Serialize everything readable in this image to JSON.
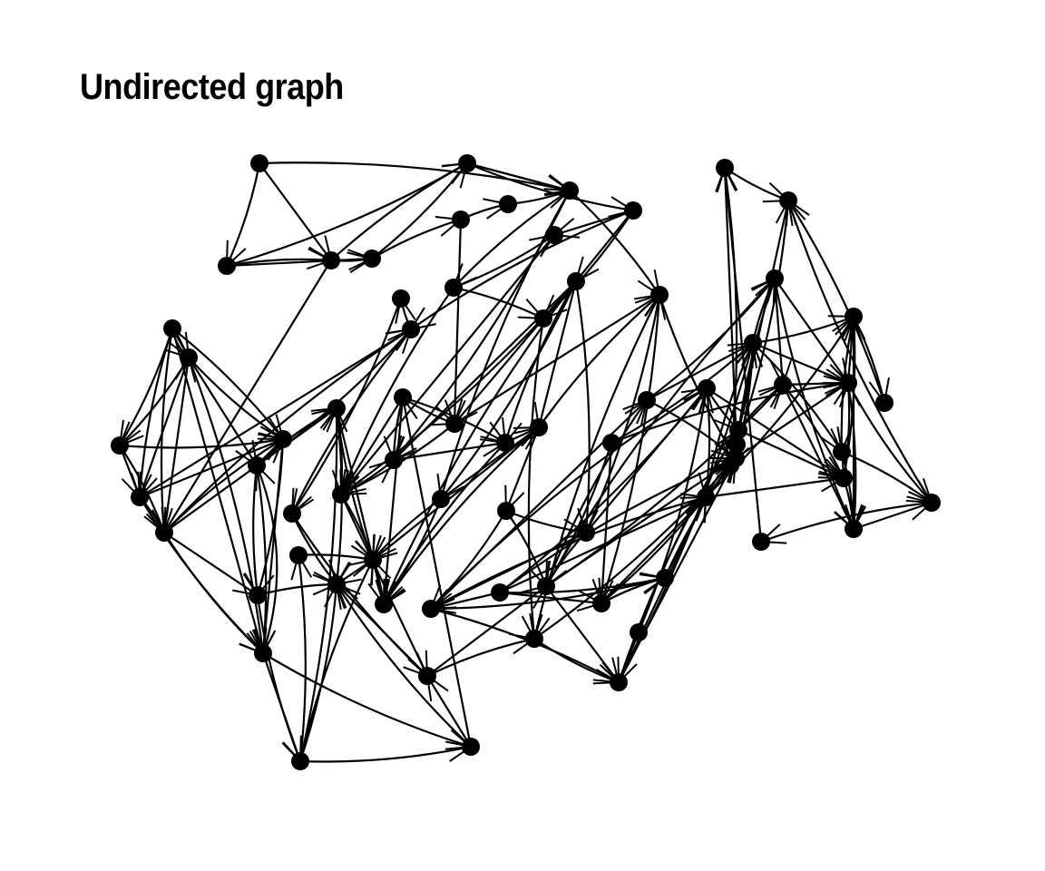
{
  "title": "Undirected graph",
  "colors": {
    "ink": "#000000",
    "background": "#ffffff"
  },
  "graph": {
    "nodes": [
      {
        "id": "n1"
      },
      {
        "id": "n2"
      },
      {
        "id": "n3"
      },
      {
        "id": "n4"
      },
      {
        "id": "n5"
      },
      {
        "id": "n6"
      },
      {
        "id": "n7"
      },
      {
        "id": "n8"
      },
      {
        "id": "n9"
      },
      {
        "id": "n10"
      },
      {
        "id": "n11"
      },
      {
        "id": "n12"
      },
      {
        "id": "n13"
      },
      {
        "id": "n14"
      },
      {
        "id": "n15"
      },
      {
        "id": "n16"
      },
      {
        "id": "n17"
      },
      {
        "id": "n18"
      },
      {
        "id": "n19"
      },
      {
        "id": "n20"
      },
      {
        "id": "n21"
      },
      {
        "id": "n22"
      },
      {
        "id": "n23"
      },
      {
        "id": "n24"
      },
      {
        "id": "n25"
      },
      {
        "id": "n26"
      },
      {
        "id": "n27"
      },
      {
        "id": "n28"
      },
      {
        "id": "n29"
      },
      {
        "id": "n30"
      },
      {
        "id": "n31"
      },
      {
        "id": "n32"
      },
      {
        "id": "n33"
      },
      {
        "id": "n34"
      },
      {
        "id": "n35"
      },
      {
        "id": "n36"
      },
      {
        "id": "n37"
      },
      {
        "id": "n38"
      },
      {
        "id": "n39"
      },
      {
        "id": "n40"
      },
      {
        "id": "n41"
      },
      {
        "id": "n42"
      },
      {
        "id": "n43"
      },
      {
        "id": "n44"
      },
      {
        "id": "n45"
      },
      {
        "id": "n46"
      },
      {
        "id": "n47"
      },
      {
        "id": "n48"
      },
      {
        "id": "n49"
      },
      {
        "id": "n50"
      },
      {
        "id": "n51"
      },
      {
        "id": "n52"
      },
      {
        "id": "n53"
      },
      {
        "id": "n54"
      },
      {
        "id": "n55"
      },
      {
        "id": "n56"
      },
      {
        "id": "n57"
      },
      {
        "id": "n58"
      },
      {
        "id": "n59"
      },
      {
        "id": "n60"
      },
      {
        "id": "n61"
      },
      {
        "id": "n62"
      },
      {
        "id": "n63"
      },
      {
        "id": "n64"
      },
      {
        "id": "n65"
      },
      {
        "id": "n66"
      },
      {
        "id": "n67"
      },
      {
        "id": "n68"
      },
      {
        "id": "n69"
      },
      {
        "id": "n70"
      },
      {
        "id": "n71"
      },
      {
        "id": "n72"
      }
    ],
    "edges": [
      [
        "n1",
        "n2"
      ],
      [
        "n1",
        "n3"
      ],
      [
        "n2",
        "n7"
      ],
      [
        "n2",
        "n3"
      ],
      [
        "n2",
        "n6"
      ],
      [
        "n3",
        "n6"
      ],
      [
        "n3",
        "n7"
      ],
      [
        "n3",
        "n10"
      ],
      [
        "n6",
        "n7"
      ],
      [
        "n6",
        "n11"
      ],
      [
        "n7",
        "n13"
      ],
      [
        "n7",
        "n14"
      ],
      [
        "n11",
        "n12"
      ],
      [
        "n11",
        "n29"
      ],
      [
        "n12",
        "n13"
      ],
      [
        "n13",
        "n31"
      ],
      [
        "n14",
        "n21"
      ],
      [
        "n13",
        "n25"
      ],
      [
        "n4",
        "n8"
      ],
      [
        "n4",
        "n5"
      ],
      [
        "n4",
        "n9"
      ],
      [
        "n4",
        "n16"
      ],
      [
        "n4",
        "n17"
      ],
      [
        "n4",
        "n10"
      ],
      [
        "n5",
        "n8"
      ],
      [
        "n5",
        "n9"
      ],
      [
        "n5",
        "n16"
      ],
      [
        "n5",
        "n17"
      ],
      [
        "n8",
        "n9"
      ],
      [
        "n8",
        "n16"
      ],
      [
        "n8",
        "n10"
      ],
      [
        "n9",
        "n16"
      ],
      [
        "n9",
        "n17"
      ],
      [
        "n9",
        "n10"
      ],
      [
        "n15",
        "n16"
      ],
      [
        "n15",
        "n18"
      ],
      [
        "n16",
        "n18"
      ],
      [
        "n16",
        "n17"
      ],
      [
        "n17",
        "n20"
      ],
      [
        "n10",
        "n16"
      ],
      [
        "n10",
        "n18"
      ],
      [
        "n10",
        "n17"
      ],
      [
        "n15",
        "n24"
      ],
      [
        "n10",
        "n24"
      ],
      [
        "n18",
        "n19"
      ],
      [
        "n18",
        "n36"
      ],
      [
        "n17",
        "n19"
      ],
      [
        "n19",
        "n20"
      ],
      [
        "n20",
        "n36"
      ],
      [
        "n20",
        "n34"
      ],
      [
        "n19",
        "n36"
      ],
      [
        "n15",
        "n17"
      ],
      [
        "n5",
        "n15"
      ],
      [
        "n22",
        "n35"
      ],
      [
        "n22",
        "n23"
      ],
      [
        "n20",
        "n27"
      ],
      [
        "n19",
        "n24"
      ],
      [
        "n17",
        "n15"
      ],
      [
        "n10",
        "n5"
      ],
      [
        "n4",
        "n5"
      ],
      [
        "n19",
        "n37"
      ],
      [
        "n26",
        "n31"
      ],
      [
        "n26",
        "n32"
      ],
      [
        "n26",
        "n33"
      ],
      [
        "n26",
        "n40"
      ],
      [
        "n26",
        "n38"
      ],
      [
        "n26",
        "n42"
      ],
      [
        "n27",
        "n30"
      ],
      [
        "n27",
        "n31"
      ],
      [
        "n27",
        "n32"
      ],
      [
        "n27",
        "n38"
      ],
      [
        "n24",
        "n37"
      ],
      [
        "n24",
        "n30"
      ],
      [
        "n24",
        "n38"
      ],
      [
        "n25",
        "n21"
      ],
      [
        "n25",
        "n28"
      ],
      [
        "n28",
        "n29"
      ],
      [
        "n28",
        "n48"
      ],
      [
        "n29",
        "n30"
      ],
      [
        "n29",
        "n44"
      ],
      [
        "n30",
        "n31"
      ],
      [
        "n30",
        "n37"
      ],
      [
        "n31",
        "n32"
      ],
      [
        "n32",
        "n38"
      ],
      [
        "n33",
        "n38"
      ],
      [
        "n33",
        "n40"
      ],
      [
        "n40",
        "n38"
      ],
      [
        "n40",
        "n44"
      ],
      [
        "n40",
        "n37"
      ],
      [
        "n41",
        "n42"
      ],
      [
        "n41",
        "n47"
      ],
      [
        "n42",
        "n46"
      ],
      [
        "n42",
        "n47"
      ],
      [
        "n43",
        "n47"
      ],
      [
        "n43",
        "n49"
      ],
      [
        "n44",
        "n48"
      ],
      [
        "n44",
        "n49"
      ],
      [
        "n45",
        "n46"
      ],
      [
        "n45",
        "n50"
      ],
      [
        "n46",
        "n52"
      ],
      [
        "n46",
        "n53"
      ],
      [
        "n46",
        "n50"
      ],
      [
        "n47",
        "n53"
      ],
      [
        "n47",
        "n52"
      ],
      [
        "n48",
        "n52"
      ],
      [
        "n49",
        "n50"
      ],
      [
        "n37",
        "n36"
      ],
      [
        "n35",
        "n36"
      ],
      [
        "n34",
        "n48"
      ],
      [
        "n34",
        "n47"
      ],
      [
        "n33",
        "n37"
      ],
      [
        "n39",
        "n37"
      ],
      [
        "n40",
        "n41"
      ],
      [
        "n38",
        "n37"
      ],
      [
        "n26",
        "n30"
      ],
      [
        "n32",
        "n40"
      ],
      [
        "n42",
        "n44"
      ],
      [
        "n41",
        "n46"
      ],
      [
        "n45",
        "n49"
      ],
      [
        "n35",
        "n34"
      ],
      [
        "n51",
        "n55"
      ],
      [
        "n51",
        "n52"
      ],
      [
        "n51",
        "n54"
      ],
      [
        "n52",
        "n55"
      ],
      [
        "n52",
        "n56"
      ],
      [
        "n52",
        "n58"
      ],
      [
        "n53",
        "n56"
      ],
      [
        "n53",
        "n58"
      ],
      [
        "n54",
        "n55"
      ],
      [
        "n54",
        "n57"
      ],
      [
        "n54",
        "n61"
      ],
      [
        "n55",
        "n58"
      ],
      [
        "n55",
        "n60"
      ],
      [
        "n55",
        "n61"
      ],
      [
        "n56",
        "n58"
      ],
      [
        "n56",
        "n59"
      ],
      [
        "n57",
        "n61"
      ],
      [
        "n57",
        "n63"
      ],
      [
        "n58",
        "n59"
      ],
      [
        "n58",
        "n62"
      ],
      [
        "n58",
        "n63"
      ],
      [
        "n58",
        "n65"
      ],
      [
        "n59",
        "n62"
      ],
      [
        "n59",
        "n66"
      ],
      [
        "n60",
        "n61"
      ],
      [
        "n60",
        "n62"
      ],
      [
        "n61",
        "n62"
      ],
      [
        "n61",
        "n66"
      ],
      [
        "n62",
        "n63"
      ],
      [
        "n62",
        "n67"
      ],
      [
        "n63",
        "n64"
      ],
      [
        "n63",
        "n66"
      ],
      [
        "n64",
        "n70"
      ],
      [
        "n65",
        "n66"
      ],
      [
        "n66",
        "n67"
      ],
      [
        "n67",
        "n68"
      ],
      [
        "n67",
        "n70"
      ],
      [
        "n68",
        "n69"
      ],
      [
        "n69",
        "n70"
      ],
      [
        "n65",
        "n67"
      ],
      [
        "n56",
        "n62"
      ],
      [
        "n53",
        "n59"
      ],
      [
        "n57",
        "n58"
      ],
      [
        "n59",
        "n60"
      ],
      [
        "n61",
        "n63"
      ],
      [
        "n62",
        "n66"
      ],
      [
        "n60",
        "n66"
      ],
      [
        "n63",
        "n65"
      ],
      [
        "n71",
        "n72"
      ],
      [
        "n71",
        "n69"
      ],
      [
        "n71",
        "n70"
      ],
      [
        "n69",
        "n72"
      ],
      [
        "n70",
        "n72"
      ],
      [
        "n45",
        "n54"
      ],
      [
        "n46",
        "n54"
      ],
      [
        "n47",
        "n56"
      ],
      [
        "n49",
        "n56"
      ],
      [
        "n50",
        "n56"
      ],
      [
        "n52",
        "n57"
      ],
      [
        "n44",
        "n56"
      ],
      [
        "n45",
        "n56"
      ],
      [
        "n49",
        "n57"
      ],
      [
        "n43",
        "n58"
      ],
      [
        "n43",
        "n62"
      ],
      [
        "n42",
        "n54"
      ],
      [
        "n48",
        "n56"
      ],
      [
        "n47",
        "n59"
      ],
      [
        "n50",
        "n57"
      ],
      [
        "n47",
        "n60"
      ],
      [
        "n46",
        "n57"
      ],
      [
        "n45",
        "n57"
      ],
      [
        "n14",
        "n22"
      ],
      [
        "n14",
        "n28"
      ],
      [
        "n14",
        "n26"
      ],
      [
        "n13",
        "n33"
      ],
      [
        "n13",
        "n44"
      ],
      [
        "n21",
        "n30"
      ],
      [
        "n25",
        "n30"
      ],
      [
        "n10",
        "n22"
      ],
      [
        "n9",
        "n22"
      ],
      [
        "n15",
        "n22"
      ],
      [
        "n23",
        "n35"
      ],
      [
        "n34",
        "n36"
      ],
      [
        "n19",
        "n39"
      ],
      [
        "n1",
        "n13"
      ],
      [
        "n30",
        "n34"
      ],
      [
        "n27",
        "n29"
      ],
      [
        "n24",
        "n36"
      ]
    ],
    "node_positions_note": ""
  }
}
